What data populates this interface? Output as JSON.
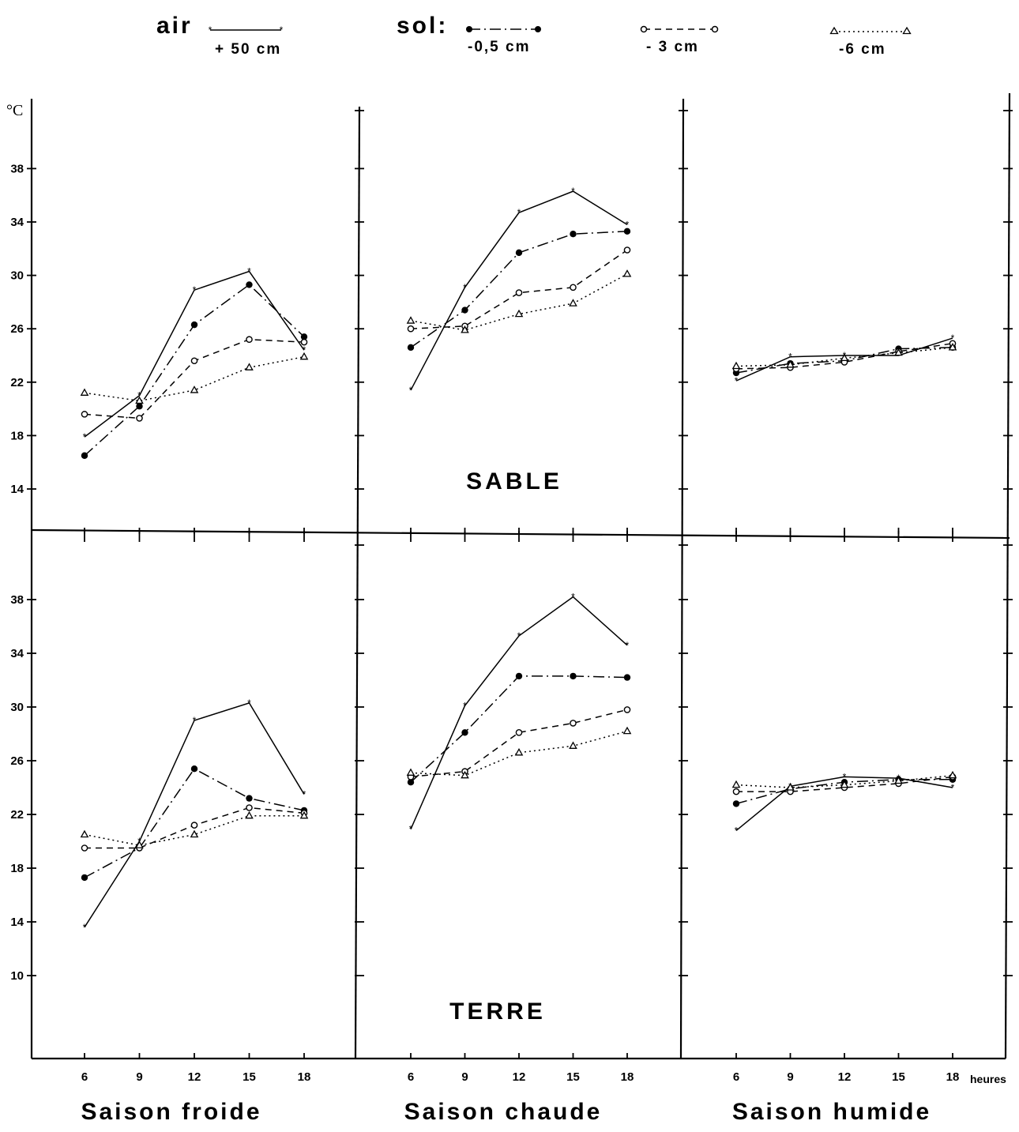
{
  "legend": {
    "air_label": "air",
    "sol_label": "sol:",
    "items": [
      {
        "series": "air",
        "label": "+ 50 cm"
      },
      {
        "series": "s05",
        "label": "-0,5 cm"
      },
      {
        "series": "s3",
        "label": "- 3 cm"
      },
      {
        "series": "s6",
        "label": "-6 cm"
      }
    ]
  },
  "y_unit": "°C",
  "x_unit": "heures",
  "row_labels": [
    "SABLE",
    "TERRE"
  ],
  "column_labels": [
    "Saison froide",
    "Saison chaude",
    "Saison humide"
  ],
  "styles": {
    "air": {
      "dash": "",
      "marker": "star",
      "color": "#000000"
    },
    "s05": {
      "dash": "14 5 2 5",
      "marker": "dot",
      "color": "#000000"
    },
    "s3": {
      "dash": "8 6",
      "marker": "circle",
      "color": "#000000"
    },
    "s6": {
      "dash": "2 4",
      "marker": "triangle",
      "color": "#000000"
    }
  },
  "chart_data": [
    {
      "type": "line",
      "title": "",
      "soil": "SABLE",
      "season": "Saison froide",
      "x": [
        6,
        9,
        12,
        15,
        18
      ],
      "ylim": [
        11,
        42
      ],
      "yticks": [
        14,
        18,
        22,
        26,
        30,
        34,
        38
      ],
      "series": [
        {
          "name": "+ 50 cm",
          "key": "air",
          "values": [
            17.9,
            21.0,
            28.9,
            30.3,
            24.4
          ]
        },
        {
          "name": "-0,5 cm",
          "key": "s05",
          "values": [
            16.5,
            20.2,
            26.3,
            29.3,
            25.4
          ]
        },
        {
          "name": "- 3 cm",
          "key": "s3",
          "values": [
            19.6,
            19.3,
            23.6,
            25.2,
            25.0
          ]
        },
        {
          "name": "-6 cm",
          "key": "s6",
          "values": [
            21.2,
            20.6,
            21.4,
            23.1,
            23.9
          ]
        }
      ]
    },
    {
      "type": "line",
      "title": "",
      "soil": "SABLE",
      "season": "Saison chaude",
      "x": [
        6,
        9,
        12,
        15,
        18
      ],
      "ylim": [
        11,
        42
      ],
      "yticks": [
        14,
        18,
        22,
        26,
        30,
        34,
        38
      ],
      "series": [
        {
          "name": "+ 50 cm",
          "key": "air",
          "values": [
            21.4,
            29.1,
            34.7,
            36.3,
            33.8
          ]
        },
        {
          "name": "-0,5 cm",
          "key": "s05",
          "values": [
            24.6,
            27.4,
            31.7,
            33.1,
            33.3
          ]
        },
        {
          "name": "- 3 cm",
          "key": "s3",
          "values": [
            26.0,
            26.2,
            28.7,
            29.1,
            31.9
          ]
        },
        {
          "name": "-6 cm",
          "key": "s6",
          "values": [
            26.6,
            25.9,
            27.1,
            27.9,
            30.1
          ]
        }
      ]
    },
    {
      "type": "line",
      "title": "",
      "soil": "SABLE",
      "season": "Saison humide",
      "x": [
        6,
        9,
        12,
        15,
        18
      ],
      "ylim": [
        11,
        42
      ],
      "yticks": [
        14,
        18,
        22,
        26,
        30,
        34,
        38
      ],
      "series": [
        {
          "name": "+ 50 cm",
          "key": "air",
          "values": [
            22.1,
            23.9,
            24.0,
            24.0,
            25.3
          ]
        },
        {
          "name": "-0,5 cm",
          "key": "s05",
          "values": [
            22.7,
            23.4,
            23.6,
            24.5,
            24.6
          ]
        },
        {
          "name": "- 3 cm",
          "key": "s3",
          "values": [
            23.0,
            23.1,
            23.5,
            24.3,
            24.9
          ]
        },
        {
          "name": "-6 cm",
          "key": "s6",
          "values": [
            23.2,
            23.3,
            23.8,
            24.2,
            24.6
          ]
        }
      ]
    },
    {
      "type": "line",
      "title": "",
      "soil": "TERRE",
      "season": "Saison froide",
      "x": [
        6,
        9,
        12,
        15,
        18
      ],
      "ylim": [
        6.5,
        42
      ],
      "yticks": [
        10,
        14,
        18,
        22,
        26,
        30,
        34,
        38
      ],
      "series": [
        {
          "name": "+ 50 cm",
          "key": "air",
          "values": [
            13.6,
            20.0,
            29.0,
            30.3,
            23.5
          ]
        },
        {
          "name": "-0,5 cm",
          "key": "s05",
          "values": [
            17.3,
            19.5,
            25.4,
            23.2,
            22.3
          ]
        },
        {
          "name": "- 3 cm",
          "key": "s3",
          "values": [
            19.5,
            19.5,
            21.2,
            22.5,
            22.1
          ]
        },
        {
          "name": "-6 cm",
          "key": "s6",
          "values": [
            20.5,
            19.7,
            20.5,
            21.9,
            21.9
          ]
        }
      ]
    },
    {
      "type": "line",
      "title": "",
      "soil": "TERRE",
      "season": "Saison chaude",
      "x": [
        6,
        9,
        12,
        15,
        18
      ],
      "ylim": [
        6.5,
        42
      ],
      "yticks": [
        10,
        14,
        18,
        22,
        26,
        30,
        34,
        38
      ],
      "series": [
        {
          "name": "+ 50 cm",
          "key": "air",
          "values": [
            20.9,
            30.1,
            35.3,
            38.2,
            34.6
          ]
        },
        {
          "name": "-0,5 cm",
          "key": "s05",
          "values": [
            24.4,
            28.1,
            32.3,
            32.3,
            32.2
          ]
        },
        {
          "name": "- 3 cm",
          "key": "s3",
          "values": [
            24.8,
            25.2,
            28.1,
            28.8,
            29.8
          ]
        },
        {
          "name": "-6 cm",
          "key": "s6",
          "values": [
            25.1,
            24.9,
            26.6,
            27.1,
            28.2
          ]
        }
      ]
    },
    {
      "type": "line",
      "title": "",
      "soil": "TERRE",
      "season": "Saison humide",
      "x": [
        6,
        9,
        12,
        15,
        18
      ],
      "ylim": [
        6.5,
        42
      ],
      "yticks": [
        10,
        14,
        18,
        22,
        26,
        30,
        34,
        38
      ],
      "series": [
        {
          "name": "+ 50 cm",
          "key": "air",
          "values": [
            20.8,
            24.1,
            24.8,
            24.7,
            24.0
          ]
        },
        {
          "name": "-0,5 cm",
          "key": "s05",
          "values": [
            22.8,
            23.9,
            24.4,
            24.6,
            24.6
          ]
        },
        {
          "name": "- 3 cm",
          "key": "s3",
          "values": [
            23.7,
            23.7,
            24.0,
            24.3,
            24.8
          ]
        },
        {
          "name": "-6 cm",
          "key": "s6",
          "values": [
            24.2,
            24.0,
            24.2,
            24.5,
            24.9
          ]
        }
      ]
    }
  ]
}
